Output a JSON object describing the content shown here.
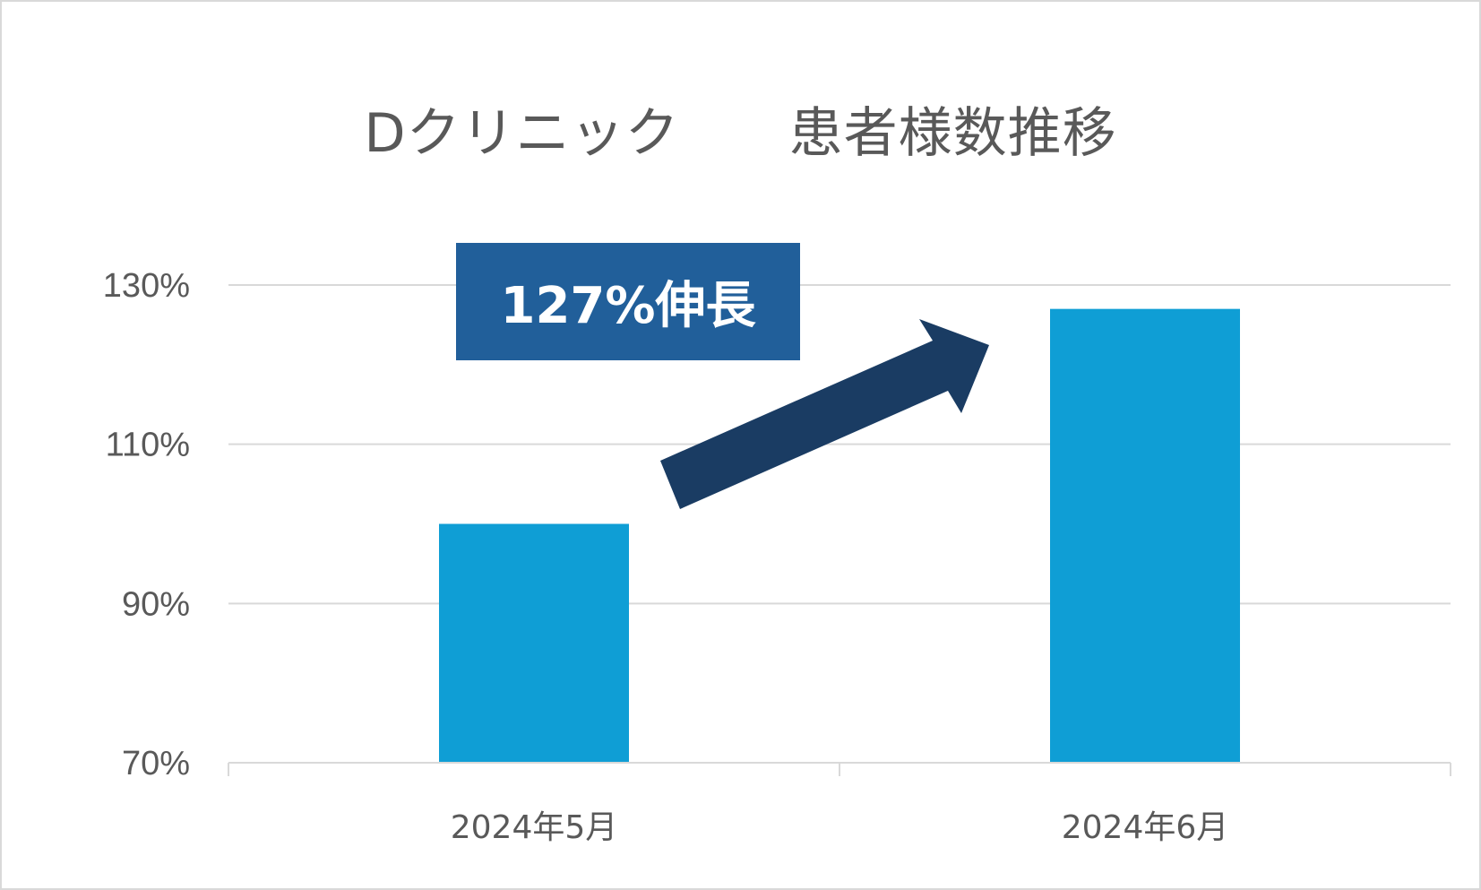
{
  "chart_data": {
    "type": "bar",
    "title": "Dクリニック　　患者様数推移",
    "categories": [
      "2024年5月",
      "2024年6月"
    ],
    "values": [
      100,
      127
    ],
    "yticks": [
      "70%",
      "90%",
      "110%",
      "130%"
    ],
    "ylim": [
      70,
      130
    ],
    "grid": true,
    "xlabel": "",
    "ylabel": "",
    "bar_color": "#0f9ed5",
    "annotation": {
      "text": "127%伸長",
      "box_color": "#215f9a",
      "arrow_color": "#1a3c63",
      "arrow": "up-right"
    }
  }
}
